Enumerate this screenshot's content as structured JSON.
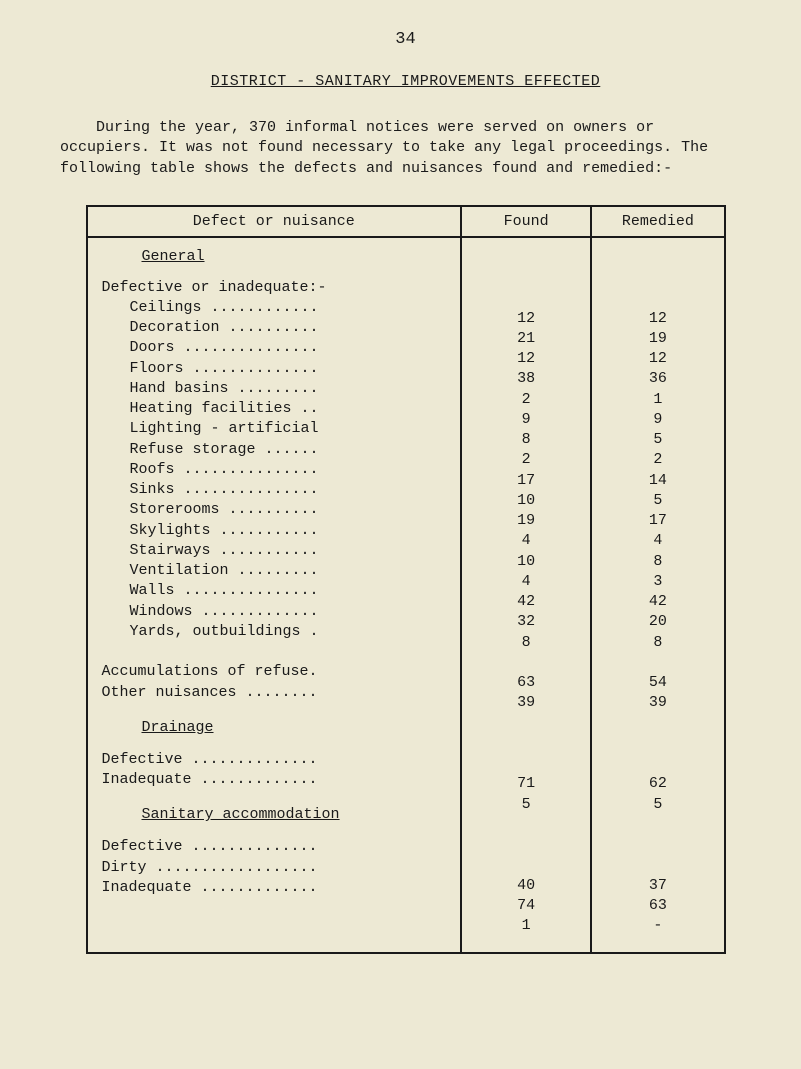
{
  "page_number": "34",
  "title": "DISTRICT - SANITARY IMPROVEMENTS EFFECTED",
  "intro": "During the year, 370 informal notices were served on owners or occupiers.  It was not found necessary to take any legal proceedings.  The following table shows the defects and nuisances found and remedied:-",
  "headers": {
    "defect": "Defect or nuisance",
    "found": "Found",
    "remedied": "Remedied"
  },
  "sections": {
    "general": {
      "heading": "General",
      "sub_intro": "Defective or inadequate:-",
      "rows": [
        {
          "label": "Ceilings ............",
          "found": "12",
          "remedied": "12"
        },
        {
          "label": "Decoration ..........",
          "found": "21",
          "remedied": "19"
        },
        {
          "label": "Doors ...............",
          "found": "12",
          "remedied": "12"
        },
        {
          "label": "Floors ..............",
          "found": "38",
          "remedied": "36"
        },
        {
          "label": "Hand basins .........",
          "found": "2",
          "remedied": "1"
        },
        {
          "label": "Heating facilities ..",
          "found": "9",
          "remedied": "9"
        },
        {
          "label": "Lighting - artificial",
          "found": "8",
          "remedied": "5"
        },
        {
          "label": "Refuse storage ......",
          "found": "2",
          "remedied": "2"
        },
        {
          "label": "Roofs ...............",
          "found": "17",
          "remedied": "14"
        },
        {
          "label": "Sinks ...............",
          "found": "10",
          "remedied": "5"
        },
        {
          "label": "Storerooms ..........",
          "found": "19",
          "remedied": "17"
        },
        {
          "label": "Skylights ...........",
          "found": "4",
          "remedied": "4"
        },
        {
          "label": "Stairways ...........",
          "found": "10",
          "remedied": "8"
        },
        {
          "label": "Ventilation .........",
          "found": "4",
          "remedied": "3"
        },
        {
          "label": "Walls ...............",
          "found": "42",
          "remedied": "42"
        },
        {
          "label": "Windows .............",
          "found": "32",
          "remedied": "20"
        },
        {
          "label": "Yards, outbuildings .",
          "found": "8",
          "remedied": "8"
        }
      ],
      "tail_rows": [
        {
          "label": "Accumulations of refuse.",
          "found": "63",
          "remedied": "54"
        },
        {
          "label": "Other nuisances ........",
          "found": "39",
          "remedied": "39"
        }
      ]
    },
    "drainage": {
      "heading": "Drainage",
      "rows": [
        {
          "label": "Defective ..............",
          "found": "71",
          "remedied": "62"
        },
        {
          "label": "Inadequate .............",
          "found": "5",
          "remedied": "5"
        }
      ]
    },
    "sanitary": {
      "heading": "Sanitary accommodation",
      "rows": [
        {
          "label": "Defective ..............",
          "found": "40",
          "remedied": "37"
        },
        {
          "label": "Dirty ..................",
          "found": "74",
          "remedied": "63"
        },
        {
          "label": "Inadequate .............",
          "found": "1",
          "remedied": "-"
        }
      ]
    }
  }
}
